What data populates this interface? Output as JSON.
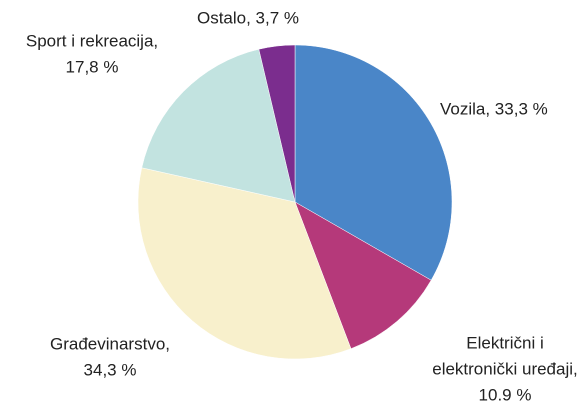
{
  "chart_data": {
    "type": "pie",
    "values": [
      33.3,
      10.9,
      34.3,
      17.8,
      3.7
    ],
    "value_labels": [
      [
        "Vozila, 33,3 %"
      ],
      [
        "Električni i",
        "elektronički uređaji,",
        "10.9 %"
      ],
      [
        "Građevinarstvo,",
        "34,3 %"
      ],
      [
        "Sport i rekreacija,",
        "17,8 %"
      ],
      [
        "Ostalo, 3,7 %"
      ]
    ],
    "colors": [
      "#4a86c8",
      "#b5397a",
      "#f8f0cc",
      "#c2e3e0",
      "#7b2d8e"
    ]
  }
}
